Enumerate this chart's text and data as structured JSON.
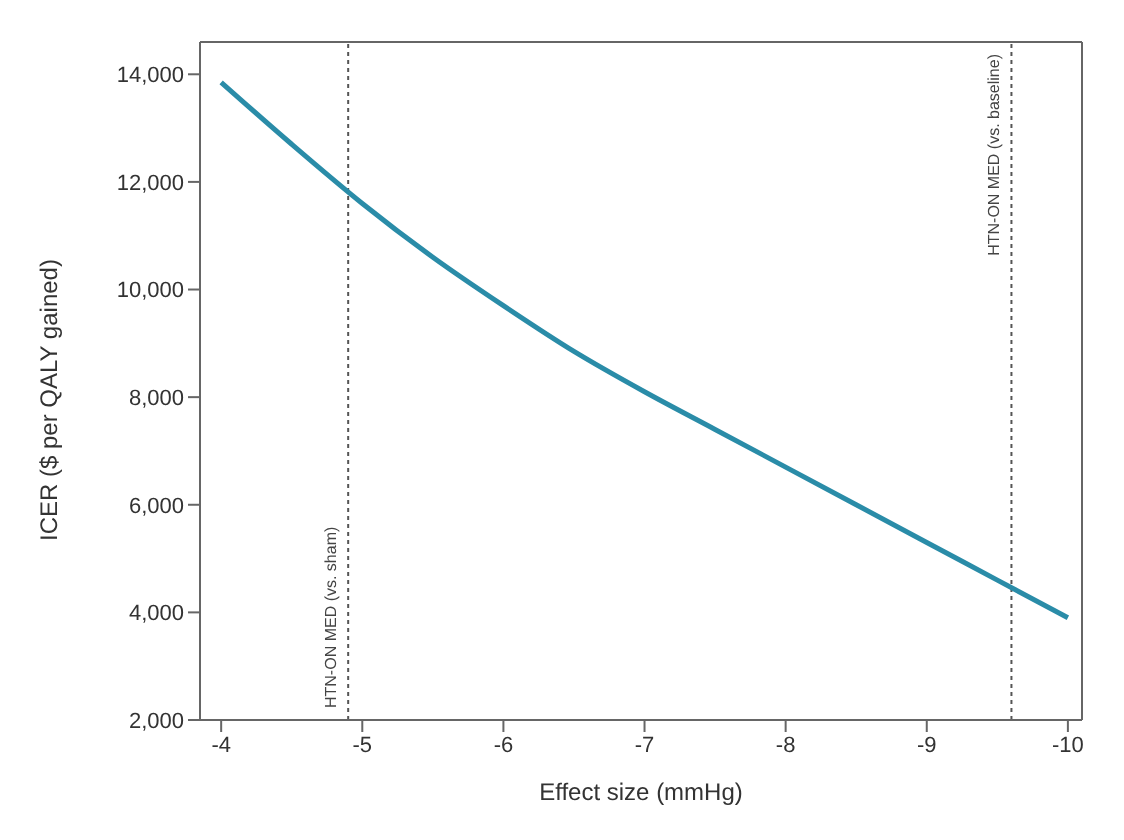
{
  "chart_data": {
    "type": "line",
    "xlabel": "Effect size (mmHg)",
    "ylabel": "ICER ($ per QALY gained)",
    "x": [
      -4,
      -4.5,
      -5,
      -5.5,
      -6,
      -6.5,
      -7,
      -7.5,
      -8,
      -8.5,
      -9,
      -9.5,
      -10
    ],
    "series": [
      {
        "color": "#2a8ca8",
        "values": [
          13850,
          12700,
          11600,
          10600,
          9700,
          8850,
          8100,
          7400,
          6700,
          6000,
          5300,
          4600,
          3900
        ]
      }
    ],
    "xlim": [
      -3.85,
      -10.1
    ],
    "xticks": [
      -4,
      -5,
      -6,
      -7,
      -8,
      -9,
      -10
    ],
    "ylim": [
      2000,
      14600
    ],
    "yticks": [
      {
        "value": 2000,
        "label": "2,000"
      },
      {
        "value": 4000,
        "label": "4,000"
      },
      {
        "value": 6000,
        "label": "6,000"
      },
      {
        "value": 8000,
        "label": "8,000"
      },
      {
        "value": 10000,
        "label": "10,000"
      },
      {
        "value": 12000,
        "label": "12,000"
      },
      {
        "value": 14000,
        "label": "14,000"
      }
    ],
    "ref_lines": [
      {
        "axis": "x",
        "value": -4.9,
        "label": "HTN-ON MED (vs. sham)",
        "line_style": "dotted",
        "color": "#555555"
      },
      {
        "axis": "x",
        "value": -9.6,
        "label": "HTN-ON MED (vs. baseline)",
        "line_style": "dotted",
        "color": "#555555"
      }
    ],
    "grid": false,
    "legend": false,
    "marker": "none",
    "line_style": "solid"
  }
}
